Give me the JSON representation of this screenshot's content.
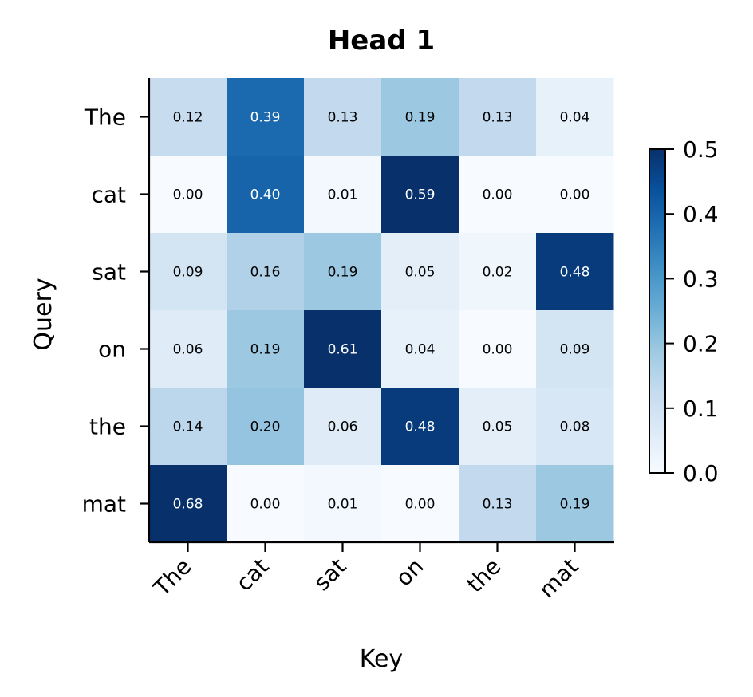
{
  "chart_data": {
    "type": "heatmap",
    "title": "Head 1",
    "xlabel": "Key",
    "ylabel": "Query",
    "x_categories": [
      "The",
      "cat",
      "sat",
      "on",
      "the",
      "mat"
    ],
    "y_categories": [
      "The",
      "cat",
      "sat",
      "on",
      "the",
      "mat"
    ],
    "values": [
      [
        0.12,
        0.39,
        0.13,
        0.19,
        0.13,
        0.04
      ],
      [
        0.0,
        0.4,
        0.01,
        0.59,
        0.0,
        0.0
      ],
      [
        0.09,
        0.16,
        0.19,
        0.05,
        0.02,
        0.48
      ],
      [
        0.06,
        0.19,
        0.61,
        0.04,
        0.0,
        0.09
      ],
      [
        0.14,
        0.2,
        0.06,
        0.48,
        0.05,
        0.08
      ],
      [
        0.68,
        0.0,
        0.01,
        0.0,
        0.13,
        0.19
      ]
    ],
    "colormap": "Blues",
    "colorbar": {
      "range": [
        0.0,
        0.5
      ],
      "ticks": [
        0.0,
        0.1,
        0.2,
        0.3,
        0.4,
        0.5
      ],
      "tick_labels": [
        "0.0",
        "0.1",
        "0.2",
        "0.3",
        "0.4",
        "0.5"
      ]
    },
    "grid": false
  }
}
